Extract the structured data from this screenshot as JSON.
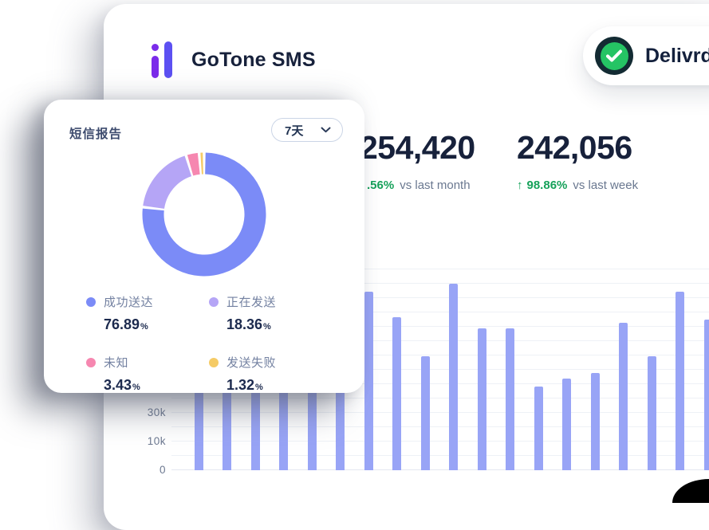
{
  "colors": {
    "positive": "#16A15A",
    "text_dark": "#17213B",
    "text_muted": "#6A7890",
    "brand_purple": "#7B2BEA",
    "brand_indigo": "#5C50F2"
  },
  "header": {
    "brand_title": "GoTone SMS",
    "status_badge": {
      "label": "Delivrd",
      "check_color": "#25C464",
      "ring_color": "#132B33"
    }
  },
  "stats": [
    {
      "value": "254,420",
      "change_visible": ".56%",
      "compare": "vs last month"
    },
    {
      "value": "242,056",
      "arrow": "↑",
      "change_visible": "98.86%",
      "compare": "vs last week"
    }
  ],
  "report_card": {
    "title": "短信报告",
    "range_select": {
      "value": "7天"
    },
    "unit_suffix": "%"
  },
  "chart_data": [
    {
      "type": "pie",
      "title": "短信报告",
      "labels": [
        "成功送达",
        "正在发送",
        "未知",
        "发送失败"
      ],
      "values": [
        76.89,
        18.36,
        3.43,
        1.32
      ],
      "value_texts": [
        "76.89",
        "18.36",
        "3.43",
        "1.32"
      ],
      "colors": [
        "#7B8BF7",
        "#B5A5F6",
        "#F687B0",
        "#F5CB66"
      ],
      "donut": true,
      "legend_position": "bottom 2x2 grid"
    },
    {
      "type": "bar",
      "title": "",
      "xlabel": "",
      "ylabel": "",
      "y_tick_labels": [
        "0",
        "10k",
        "30k"
      ],
      "y_tick_gridlines": [
        0,
        2,
        4
      ],
      "gridline_count": 15,
      "values_k": [
        48,
        52,
        45,
        50,
        47,
        53,
        64,
        55,
        41,
        67,
        51,
        51,
        30,
        33,
        35,
        53,
        41,
        64,
        54
      ],
      "bar_color": "#98A4F6",
      "grid": "on",
      "note_scale": "10k = 2 gridlines"
    }
  ]
}
